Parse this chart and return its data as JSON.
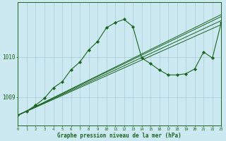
{
  "bg_color": "#cce8f0",
  "grid_color": "#a8ccd8",
  "line_color": "#1a6620",
  "marker_color": "#1a6620",
  "title": "Graphe pression niveau de la mer (hPa)",
  "xlim": [
    0,
    23
  ],
  "ylim": [
    1008.3,
    1011.35
  ],
  "yticks": [
    1009,
    1010
  ],
  "xticks": [
    0,
    1,
    2,
    3,
    4,
    5,
    6,
    7,
    8,
    9,
    10,
    11,
    12,
    13,
    14,
    15,
    16,
    17,
    18,
    19,
    20,
    21,
    22,
    23
  ],
  "linear_series": [
    {
      "x": [
        0,
        23
      ],
      "y": [
        1008.55,
        1010.8
      ]
    },
    {
      "x": [
        0,
        23
      ],
      "y": [
        1008.55,
        1010.9
      ]
    },
    {
      "x": [
        0,
        23
      ],
      "y": [
        1008.55,
        1011.0
      ]
    },
    {
      "x": [
        0,
        23
      ],
      "y": [
        1008.55,
        1011.05
      ]
    }
  ],
  "main_series_x": [
    0,
    1,
    2,
    3,
    4,
    5,
    6,
    7,
    8,
    9,
    10,
    11,
    12,
    13,
    14,
    15,
    16,
    17,
    18,
    19,
    20,
    21,
    22,
    23
  ],
  "main_series_y": [
    1008.55,
    1008.65,
    1008.8,
    1008.97,
    1009.23,
    1009.38,
    1009.68,
    1009.87,
    1010.17,
    1010.38,
    1010.72,
    1010.85,
    1010.93,
    1010.75,
    1009.97,
    1009.83,
    1009.67,
    1009.55,
    1009.55,
    1009.58,
    1009.7,
    1010.12,
    1009.97,
    1010.85
  ]
}
